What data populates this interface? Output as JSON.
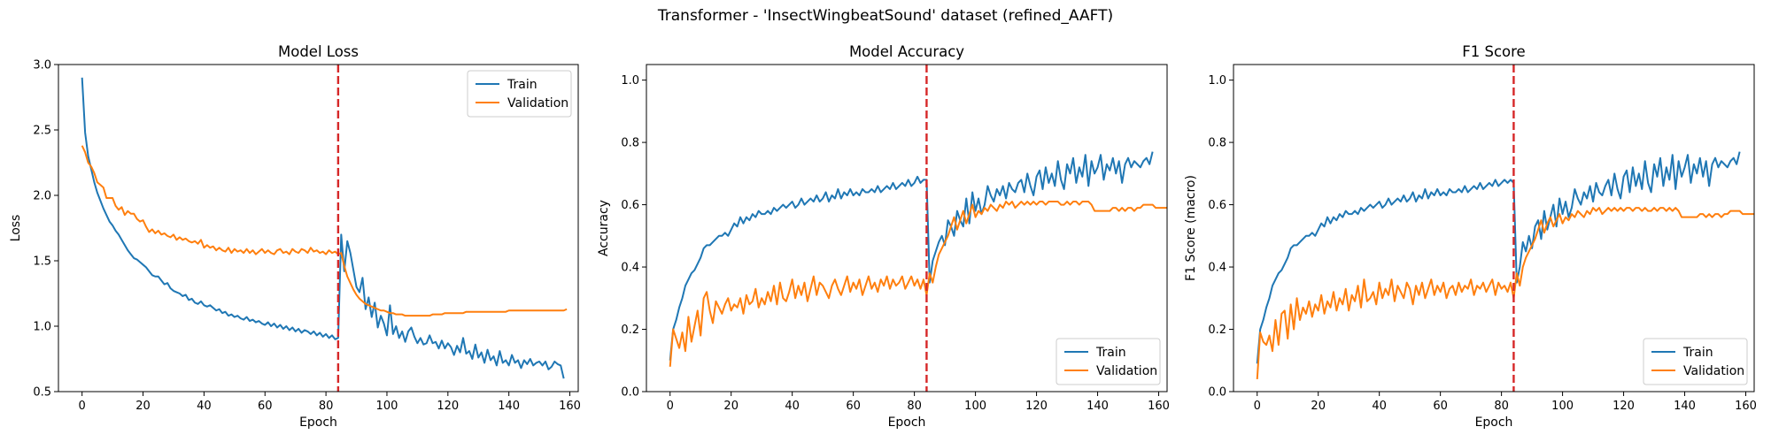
{
  "figure": {
    "suptitle": "Transformer - 'InsectWingbeatSound' dataset (refined_AAFT)"
  },
  "colors": {
    "train": "#1f77b4",
    "validation": "#ff7f0e",
    "marker": "#d62728"
  },
  "chart_data": [
    {
      "type": "line",
      "title": "Model Loss",
      "xlabel": "Epoch",
      "ylabel": "Loss",
      "xlim": [
        -7.75,
        162.75
      ],
      "ylim": [
        0.5,
        3.0
      ],
      "xticks": [
        0,
        20,
        40,
        60,
        80,
        100,
        120,
        140,
        160
      ],
      "yticks": [
        0.5,
        1.0,
        1.5,
        2.0,
        2.5,
        3.0
      ],
      "ytick_labels": [
        "0.5",
        "1.0",
        "1.5",
        "2.0",
        "2.5",
        "3.0"
      ],
      "legend": "upper right",
      "vline": 84,
      "series": [
        {
          "name": "Train",
          "values": [
            2.9,
            2.48,
            2.3,
            2.2,
            2.1,
            2.02,
            1.96,
            1.9,
            1.85,
            1.8,
            1.77,
            1.73,
            1.7,
            1.66,
            1.62,
            1.58,
            1.55,
            1.52,
            1.51,
            1.49,
            1.47,
            1.45,
            1.42,
            1.39,
            1.38,
            1.38,
            1.35,
            1.32,
            1.33,
            1.29,
            1.27,
            1.26,
            1.25,
            1.23,
            1.24,
            1.2,
            1.21,
            1.18,
            1.17,
            1.19,
            1.16,
            1.15,
            1.16,
            1.14,
            1.12,
            1.13,
            1.1,
            1.11,
            1.08,
            1.09,
            1.07,
            1.08,
            1.06,
            1.05,
            1.07,
            1.04,
            1.05,
            1.03,
            1.04,
            1.02,
            1.01,
            1.03,
            1.0,
            1.02,
            0.99,
            1.01,
            0.98,
            1.0,
            0.97,
            0.99,
            0.96,
            0.98,
            0.95,
            0.97,
            0.96,
            0.94,
            0.96,
            0.93,
            0.95,
            0.92,
            0.94,
            0.91,
            0.93,
            0.9,
            0.91,
            1.7,
            1.42,
            1.65,
            1.56,
            1.43,
            1.3,
            1.26,
            1.37,
            1.13,
            1.22,
            1.07,
            1.18,
            0.99,
            1.08,
            1.02,
            0.93,
            1.16,
            0.94,
            1.0,
            0.91,
            0.96,
            0.88,
            0.96,
            0.99,
            0.92,
            0.87,
            0.91,
            0.86,
            0.87,
            0.93,
            0.87,
            0.88,
            0.83,
            0.89,
            0.83,
            0.87,
            0.84,
            0.78,
            0.85,
            0.8,
            0.91,
            0.79,
            0.81,
            0.75,
            0.86,
            0.76,
            0.8,
            0.72,
            0.82,
            0.74,
            0.77,
            0.7,
            0.81,
            0.72,
            0.74,
            0.7,
            0.78,
            0.72,
            0.74,
            0.68,
            0.74,
            0.71,
            0.75,
            0.7,
            0.72,
            0.73,
            0.7,
            0.73,
            0.67,
            0.69,
            0.73,
            0.71,
            0.7,
            0.6
          ]
        },
        {
          "name": "Validation",
          "values": [
            2.38,
            2.33,
            2.25,
            2.22,
            2.17,
            2.1,
            2.08,
            2.06,
            1.98,
            1.98,
            1.98,
            1.92,
            1.89,
            1.91,
            1.85,
            1.88,
            1.86,
            1.86,
            1.82,
            1.8,
            1.81,
            1.76,
            1.72,
            1.74,
            1.71,
            1.73,
            1.7,
            1.71,
            1.69,
            1.68,
            1.7,
            1.66,
            1.68,
            1.66,
            1.67,
            1.65,
            1.64,
            1.65,
            1.63,
            1.66,
            1.6,
            1.62,
            1.6,
            1.61,
            1.58,
            1.6,
            1.58,
            1.57,
            1.6,
            1.56,
            1.59,
            1.57,
            1.58,
            1.56,
            1.59,
            1.56,
            1.58,
            1.55,
            1.57,
            1.59,
            1.56,
            1.58,
            1.56,
            1.55,
            1.58,
            1.59,
            1.56,
            1.57,
            1.55,
            1.59,
            1.57,
            1.56,
            1.59,
            1.58,
            1.56,
            1.6,
            1.57,
            1.58,
            1.56,
            1.57,
            1.55,
            1.58,
            1.56,
            1.57,
            1.55,
            1.56,
            1.46,
            1.38,
            1.33,
            1.28,
            1.24,
            1.21,
            1.19,
            1.17,
            1.16,
            1.15,
            1.14,
            1.13,
            1.12,
            1.12,
            1.11,
            1.1,
            1.1,
            1.09,
            1.09,
            1.09,
            1.08,
            1.08,
            1.08,
            1.08,
            1.08,
            1.08,
            1.08,
            1.08,
            1.08,
            1.09,
            1.09,
            1.09,
            1.09,
            1.1,
            1.1,
            1.1,
            1.1,
            1.1,
            1.1,
            1.1,
            1.11,
            1.11,
            1.11,
            1.11,
            1.11,
            1.11,
            1.11,
            1.11,
            1.11,
            1.11,
            1.11,
            1.11,
            1.11,
            1.11,
            1.12,
            1.12,
            1.12,
            1.12,
            1.12,
            1.12,
            1.12,
            1.12,
            1.12,
            1.12,
            1.12,
            1.12,
            1.12,
            1.12,
            1.12,
            1.12,
            1.12,
            1.12,
            1.12,
            1.13
          ]
        }
      ]
    },
    {
      "type": "line",
      "title": "Model Accuracy",
      "xlabel": "Epoch",
      "ylabel": "Accuracy",
      "xlim": [
        -7.75,
        162.75
      ],
      "ylim": [
        0.0,
        1.05
      ],
      "xticks": [
        0,
        20,
        40,
        60,
        80,
        100,
        120,
        140,
        160
      ],
      "yticks": [
        0.0,
        0.2,
        0.4,
        0.6,
        0.8,
        1.0
      ],
      "ytick_labels": [
        "0.0",
        "0.2",
        "0.4",
        "0.6",
        "0.8",
        "1.0"
      ],
      "legend": "lower right",
      "vline": 84,
      "series": [
        {
          "name": "Train",
          "values": [
            0.1,
            0.2,
            0.23,
            0.27,
            0.3,
            0.34,
            0.36,
            0.38,
            0.39,
            0.41,
            0.43,
            0.46,
            0.47,
            0.47,
            0.48,
            0.49,
            0.5,
            0.5,
            0.51,
            0.5,
            0.52,
            0.54,
            0.53,
            0.56,
            0.54,
            0.56,
            0.55,
            0.57,
            0.56,
            0.58,
            0.57,
            0.57,
            0.58,
            0.57,
            0.59,
            0.58,
            0.59,
            0.6,
            0.59,
            0.6,
            0.61,
            0.59,
            0.6,
            0.62,
            0.6,
            0.61,
            0.62,
            0.61,
            0.63,
            0.61,
            0.62,
            0.64,
            0.61,
            0.63,
            0.62,
            0.65,
            0.62,
            0.64,
            0.63,
            0.65,
            0.63,
            0.64,
            0.63,
            0.65,
            0.64,
            0.64,
            0.65,
            0.64,
            0.66,
            0.64,
            0.65,
            0.66,
            0.65,
            0.67,
            0.65,
            0.66,
            0.67,
            0.66,
            0.68,
            0.66,
            0.67,
            0.69,
            0.67,
            0.68,
            0.68,
            0.35,
            0.42,
            0.45,
            0.48,
            0.5,
            0.47,
            0.55,
            0.53,
            0.5,
            0.58,
            0.55,
            0.53,
            0.62,
            0.54,
            0.64,
            0.58,
            0.62,
            0.57,
            0.6,
            0.66,
            0.63,
            0.61,
            0.65,
            0.63,
            0.66,
            0.62,
            0.67,
            0.65,
            0.64,
            0.67,
            0.68,
            0.64,
            0.7,
            0.66,
            0.63,
            0.69,
            0.71,
            0.65,
            0.72,
            0.67,
            0.7,
            0.66,
            0.74,
            0.68,
            0.65,
            0.73,
            0.7,
            0.75,
            0.67,
            0.72,
            0.69,
            0.76,
            0.66,
            0.74,
            0.7,
            0.72,
            0.76,
            0.68,
            0.73,
            0.71,
            0.75,
            0.7,
            0.74,
            0.67,
            0.73,
            0.75,
            0.72,
            0.74,
            0.73,
            0.72,
            0.74,
            0.75,
            0.73,
            0.77
          ]
        },
        {
          "name": "Validation",
          "values": [
            0.08,
            0.2,
            0.17,
            0.14,
            0.19,
            0.13,
            0.24,
            0.16,
            0.21,
            0.26,
            0.18,
            0.3,
            0.32,
            0.26,
            0.22,
            0.29,
            0.27,
            0.25,
            0.28,
            0.3,
            0.26,
            0.28,
            0.27,
            0.3,
            0.25,
            0.31,
            0.28,
            0.29,
            0.33,
            0.27,
            0.3,
            0.28,
            0.32,
            0.29,
            0.34,
            0.28,
            0.35,
            0.3,
            0.29,
            0.32,
            0.36,
            0.3,
            0.34,
            0.31,
            0.35,
            0.29,
            0.33,
            0.37,
            0.31,
            0.35,
            0.34,
            0.32,
            0.3,
            0.34,
            0.36,
            0.33,
            0.31,
            0.34,
            0.37,
            0.32,
            0.35,
            0.33,
            0.36,
            0.31,
            0.34,
            0.37,
            0.33,
            0.35,
            0.32,
            0.36,
            0.34,
            0.37,
            0.33,
            0.36,
            0.34,
            0.35,
            0.37,
            0.33,
            0.35,
            0.37,
            0.34,
            0.36,
            0.33,
            0.36,
            0.31,
            0.38,
            0.35,
            0.4,
            0.44,
            0.46,
            0.48,
            0.5,
            0.53,
            0.56,
            0.52,
            0.55,
            0.58,
            0.54,
            0.57,
            0.6,
            0.56,
            0.58,
            0.57,
            0.59,
            0.58,
            0.6,
            0.59,
            0.58,
            0.6,
            0.59,
            0.61,
            0.6,
            0.61,
            0.59,
            0.6,
            0.61,
            0.6,
            0.61,
            0.6,
            0.61,
            0.6,
            0.61,
            0.61,
            0.6,
            0.61,
            0.61,
            0.61,
            0.61,
            0.6,
            0.6,
            0.61,
            0.6,
            0.61,
            0.61,
            0.6,
            0.61,
            0.61,
            0.61,
            0.6,
            0.58,
            0.58,
            0.58,
            0.58,
            0.58,
            0.58,
            0.59,
            0.59,
            0.58,
            0.59,
            0.58,
            0.59,
            0.59,
            0.58,
            0.59,
            0.59,
            0.6,
            0.6,
            0.6,
            0.6,
            0.59,
            0.59,
            0.59,
            0.59,
            0.59,
            0.59
          ]
        }
      ]
    },
    {
      "type": "line",
      "title": "F1 Score",
      "xlabel": "Epoch",
      "ylabel": "F1 Score (macro)",
      "xlim": [
        -7.75,
        162.75
      ],
      "ylim": [
        0.0,
        1.05
      ],
      "xticks": [
        0,
        20,
        40,
        60,
        80,
        100,
        120,
        140,
        160
      ],
      "yticks": [
        0.0,
        0.2,
        0.4,
        0.6,
        0.8,
        1.0
      ],
      "ytick_labels": [
        "0.0",
        "0.2",
        "0.4",
        "0.6",
        "0.8",
        "1.0"
      ],
      "legend": "lower right",
      "vline": 84,
      "series": [
        {
          "name": "Train",
          "values": [
            0.09,
            0.2,
            0.23,
            0.27,
            0.3,
            0.34,
            0.36,
            0.38,
            0.39,
            0.41,
            0.43,
            0.46,
            0.47,
            0.47,
            0.48,
            0.49,
            0.5,
            0.5,
            0.51,
            0.5,
            0.52,
            0.54,
            0.53,
            0.56,
            0.54,
            0.56,
            0.55,
            0.57,
            0.56,
            0.58,
            0.57,
            0.57,
            0.58,
            0.57,
            0.59,
            0.58,
            0.59,
            0.6,
            0.59,
            0.6,
            0.61,
            0.59,
            0.6,
            0.62,
            0.6,
            0.61,
            0.62,
            0.61,
            0.63,
            0.61,
            0.62,
            0.64,
            0.61,
            0.63,
            0.62,
            0.65,
            0.62,
            0.64,
            0.63,
            0.65,
            0.63,
            0.64,
            0.63,
            0.65,
            0.64,
            0.64,
            0.65,
            0.64,
            0.66,
            0.64,
            0.65,
            0.66,
            0.65,
            0.67,
            0.65,
            0.66,
            0.67,
            0.66,
            0.68,
            0.66,
            0.67,
            0.68,
            0.67,
            0.68,
            0.67,
            0.35,
            0.4,
            0.48,
            0.45,
            0.5,
            0.46,
            0.53,
            0.55,
            0.49,
            0.58,
            0.52,
            0.56,
            0.6,
            0.53,
            0.62,
            0.57,
            0.61,
            0.56,
            0.59,
            0.65,
            0.62,
            0.6,
            0.64,
            0.62,
            0.66,
            0.61,
            0.67,
            0.64,
            0.63,
            0.66,
            0.68,
            0.63,
            0.7,
            0.65,
            0.62,
            0.69,
            0.71,
            0.64,
            0.72,
            0.66,
            0.7,
            0.65,
            0.74,
            0.67,
            0.64,
            0.73,
            0.69,
            0.75,
            0.66,
            0.72,
            0.68,
            0.76,
            0.65,
            0.74,
            0.69,
            0.72,
            0.76,
            0.67,
            0.73,
            0.7,
            0.75,
            0.69,
            0.74,
            0.66,
            0.73,
            0.75,
            0.72,
            0.74,
            0.73,
            0.72,
            0.74,
            0.75,
            0.73,
            0.77
          ]
        },
        {
          "name": "Validation",
          "values": [
            0.04,
            0.19,
            0.16,
            0.15,
            0.18,
            0.13,
            0.23,
            0.15,
            0.25,
            0.26,
            0.17,
            0.28,
            0.2,
            0.3,
            0.23,
            0.27,
            0.25,
            0.29,
            0.24,
            0.28,
            0.26,
            0.31,
            0.25,
            0.29,
            0.27,
            0.32,
            0.26,
            0.3,
            0.28,
            0.33,
            0.26,
            0.31,
            0.29,
            0.34,
            0.27,
            0.36,
            0.29,
            0.3,
            0.32,
            0.28,
            0.35,
            0.3,
            0.33,
            0.31,
            0.36,
            0.29,
            0.34,
            0.32,
            0.3,
            0.35,
            0.33,
            0.28,
            0.34,
            0.31,
            0.35,
            0.3,
            0.33,
            0.36,
            0.31,
            0.34,
            0.32,
            0.35,
            0.3,
            0.33,
            0.34,
            0.31,
            0.35,
            0.32,
            0.34,
            0.33,
            0.36,
            0.31,
            0.34,
            0.33,
            0.35,
            0.32,
            0.34,
            0.36,
            0.31,
            0.35,
            0.33,
            0.34,
            0.32,
            0.35,
            0.3,
            0.38,
            0.34,
            0.4,
            0.43,
            0.45,
            0.47,
            0.49,
            0.52,
            0.55,
            0.51,
            0.54,
            0.56,
            0.53,
            0.55,
            0.57,
            0.54,
            0.56,
            0.55,
            0.57,
            0.56,
            0.58,
            0.57,
            0.56,
            0.58,
            0.57,
            0.59,
            0.58,
            0.59,
            0.57,
            0.58,
            0.59,
            0.58,
            0.59,
            0.58,
            0.59,
            0.58,
            0.59,
            0.59,
            0.58,
            0.59,
            0.59,
            0.58,
            0.59,
            0.58,
            0.58,
            0.59,
            0.58,
            0.59,
            0.59,
            0.58,
            0.59,
            0.58,
            0.59,
            0.58,
            0.56,
            0.56,
            0.56,
            0.56,
            0.56,
            0.56,
            0.57,
            0.57,
            0.56,
            0.57,
            0.56,
            0.57,
            0.57,
            0.56,
            0.57,
            0.57,
            0.58,
            0.58,
            0.58,
            0.58,
            0.57,
            0.57,
            0.57,
            0.57,
            0.57,
            0.57
          ]
        }
      ]
    }
  ]
}
